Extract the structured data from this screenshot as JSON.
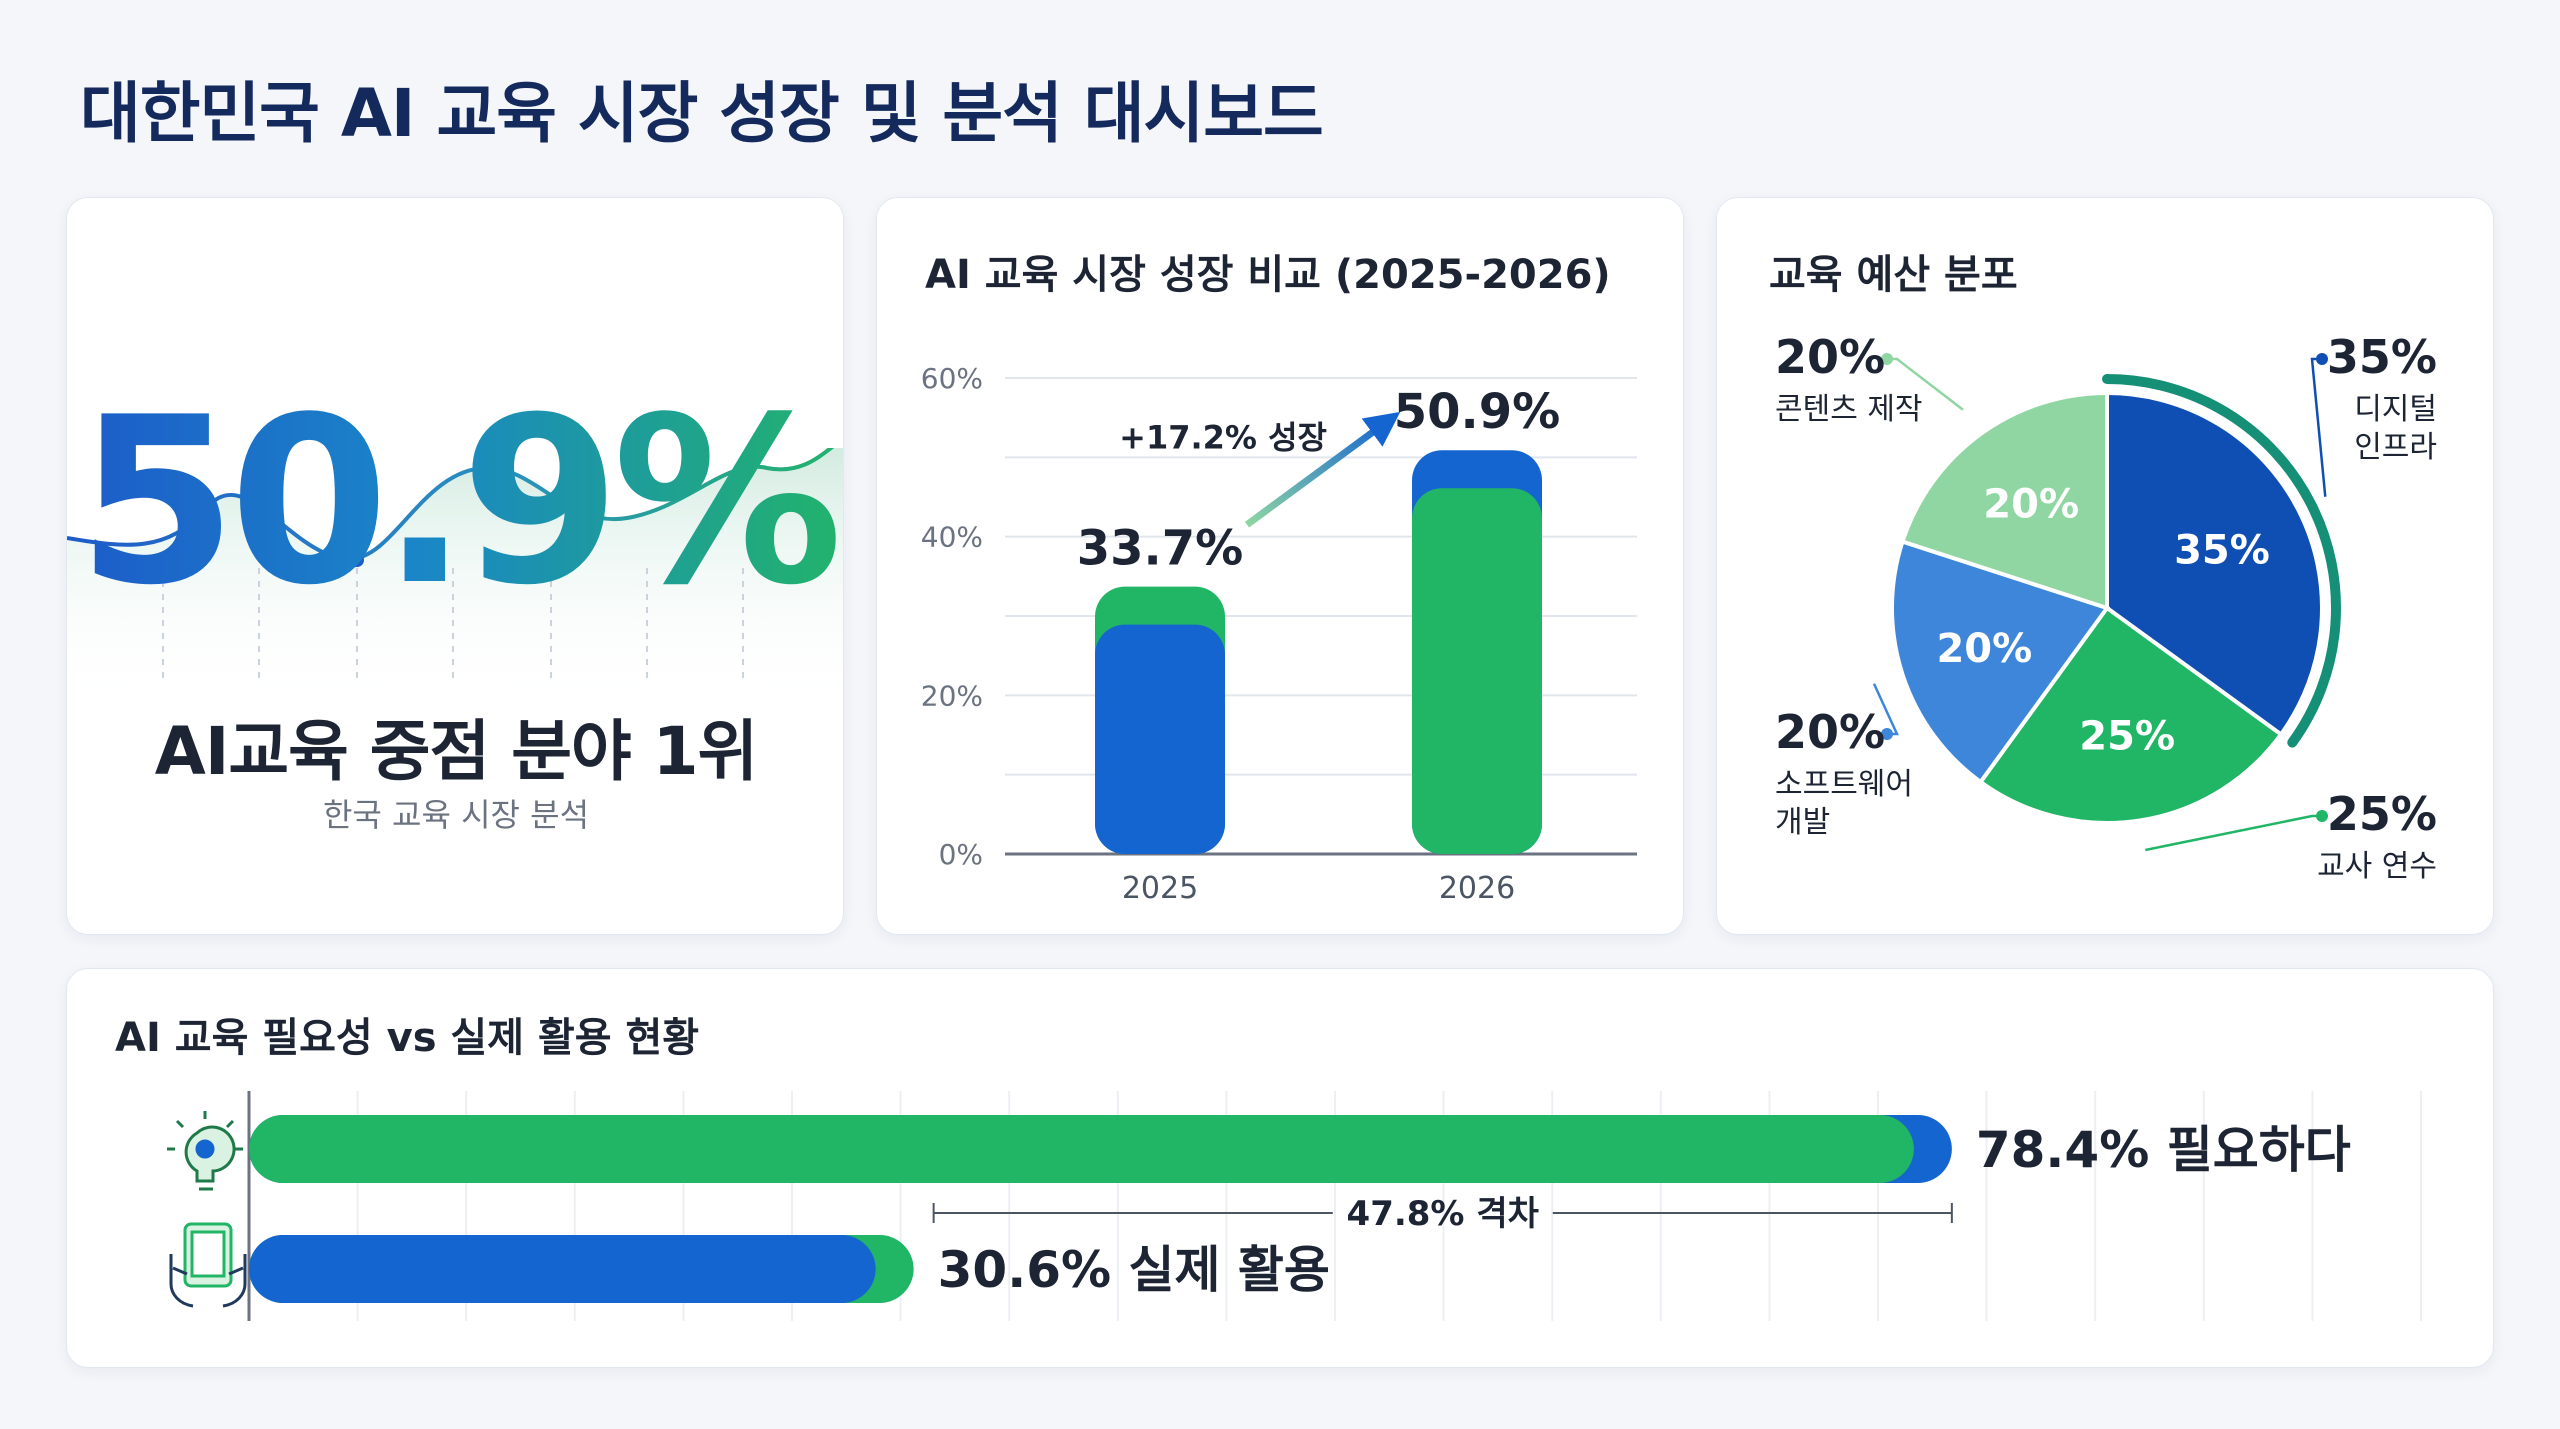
{
  "page": {
    "title": "대한민국 AI 교육 시장 성장 및 분석 대시보드"
  },
  "kpi": {
    "value": "50.9%",
    "rank": "AI교육 중점 분야 1위",
    "subtitle": "한국 교육 시장 분석"
  },
  "colors": {
    "blue": "#1565d0",
    "green": "#21b566",
    "light_green": "#8fd6a3",
    "mid_blue": "#3d86d9",
    "dark_blue": "#0f4fb4"
  },
  "chart_data": [
    {
      "type": "bar",
      "title": "AI 교육 시장 성장 비교 (2025-2026)",
      "categories": [
        "2025",
        "2026"
      ],
      "values": [
        33.7,
        50.9
      ],
      "value_labels": [
        "33.7%",
        "50.9%"
      ],
      "ylim": [
        0,
        60
      ],
      "yticks": [
        "0%",
        "20%",
        "40%",
        "60%"
      ],
      "annotation": "+17.2% 성장",
      "grid": true
    },
    {
      "type": "pie",
      "title": "교육 예산 분포",
      "slices": [
        {
          "label": "디지털 인프라",
          "label_lines": [
            "디지털",
            "인프라"
          ],
          "value": 35,
          "pct": "35%"
        },
        {
          "label": "교사 연수",
          "label_lines": [
            "교사 연수"
          ],
          "value": 25,
          "pct": "25%"
        },
        {
          "label": "소프트웨어 개발",
          "label_lines": [
            "소프트웨어",
            "개발"
          ],
          "value": 20,
          "pct": "20%"
        },
        {
          "label": "콘텐츠 제작",
          "label_lines": [
            "콘텐츠 제작"
          ],
          "value": 20,
          "pct": "20%"
        }
      ]
    },
    {
      "type": "bar",
      "orientation": "horizontal",
      "title": "AI 교육 필요성 vs 실제 활용 현황",
      "xlim": [
        0,
        100
      ],
      "bars": [
        {
          "name": "필요하다",
          "value": 78.4,
          "label": "78.4% 필요하다",
          "icon": "lightbulb-gear-icon"
        },
        {
          "name": "실제 활용",
          "value": 30.6,
          "label": "30.6% 실제 활용",
          "icon": "hands-tablet-icon"
        }
      ],
      "gap_label": "47.8% 격차",
      "grid": true
    }
  ]
}
